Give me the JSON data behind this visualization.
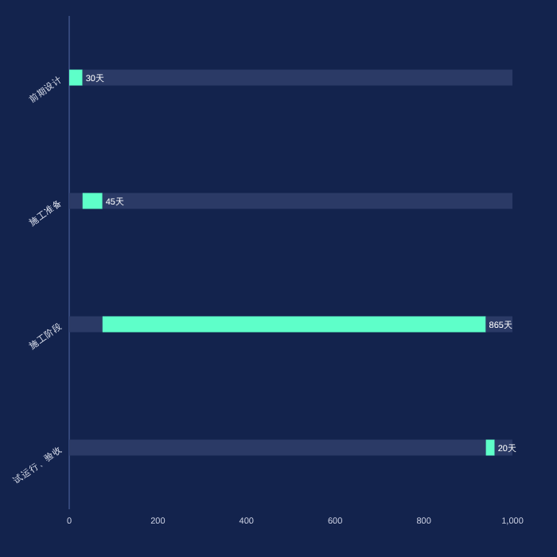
{
  "chart_data": {
    "type": "bar",
    "orientation": "horizontal",
    "stacked": true,
    "categories": [
      "前期设计",
      "施工准备",
      "施工阶段",
      "试运行、验收"
    ],
    "xlim": [
      0,
      1000
    ],
    "xticks": [
      0,
      200,
      400,
      600,
      800,
      {
        "value": 1000,
        "label": "1,000"
      }
    ],
    "series": [
      {
        "color": "#2b3a66",
        "values": [
          0,
          30,
          75,
          940
        ]
      },
      {
        "color": "#5effc9",
        "values": [
          30,
          45,
          865,
          20
        ],
        "value_labels": [
          "30天",
          "45天",
          "865天",
          "20天"
        ]
      },
      {
        "color": "#2b3a66",
        "values": [
          970,
          925,
          60,
          40
        ]
      }
    ],
    "grid": false
  }
}
